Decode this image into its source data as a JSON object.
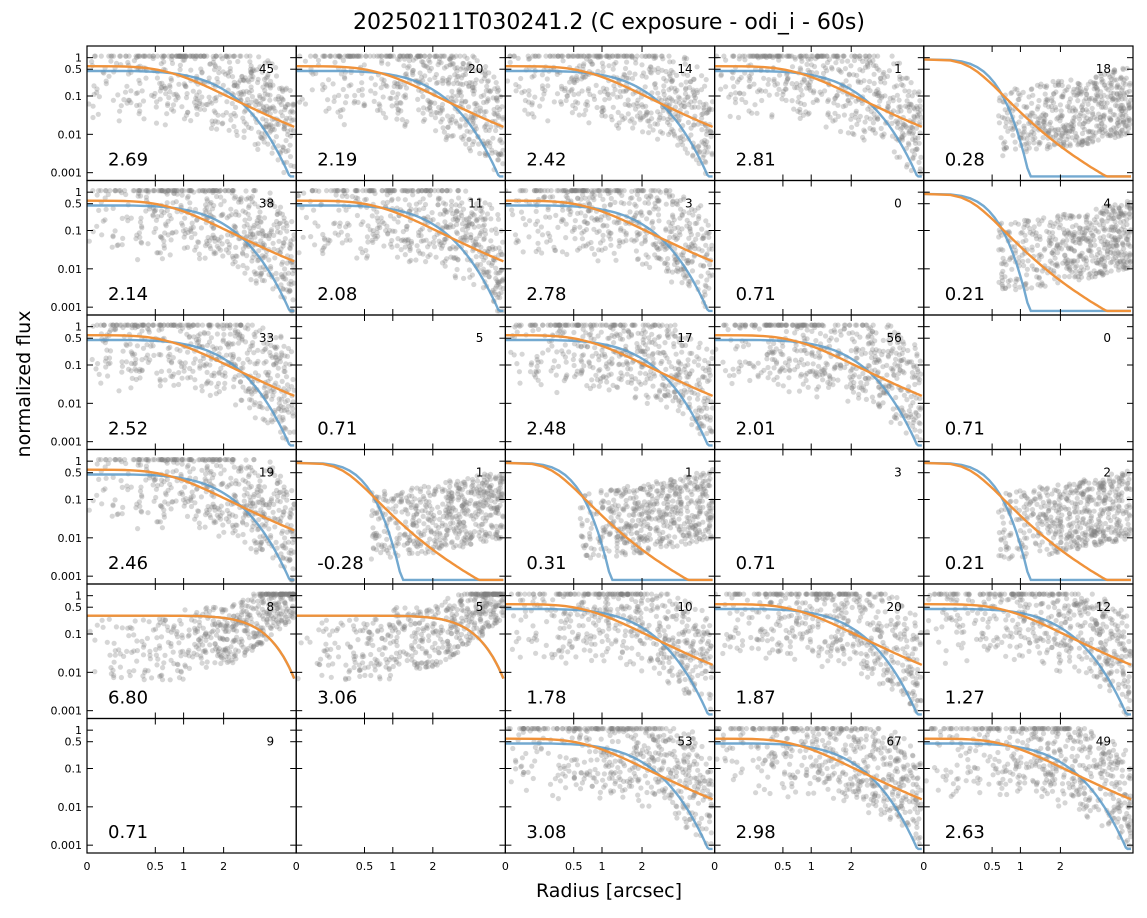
{
  "figure": {
    "title": "20250211T030241.2 (C exposure - odi_i - 60s)",
    "xlabel": "Radius [arcsec]",
    "ylabel": "normalized flux"
  },
  "chart_data": {
    "type": "scatter",
    "layout": "6x5 grid of small multiples",
    "xticks": [
      "0",
      "0.5",
      "1",
      "2"
    ],
    "yticks": [
      "0.001",
      "0.01",
      "0.1",
      "0.5",
      "1"
    ],
    "yscale": "log",
    "colors": {
      "points": "#808080",
      "fit_blue": "#5a9ac8",
      "fit_orange": "#f0923a"
    },
    "panels": [
      {
        "value": "2.69",
        "count": "45"
      },
      {
        "value": "2.19",
        "count": "20"
      },
      {
        "value": "2.42",
        "count": "14"
      },
      {
        "value": "2.81",
        "count": "1"
      },
      {
        "value": "0.28",
        "count": "18"
      },
      {
        "value": "2.14",
        "count": "38"
      },
      {
        "value": "2.08",
        "count": "11"
      },
      {
        "value": "2.78",
        "count": "3"
      },
      {
        "value": "0.71",
        "count": "0"
      },
      {
        "value": "0.21",
        "count": "4"
      },
      {
        "value": "2.52",
        "count": "33"
      },
      {
        "value": "0.71",
        "count": "5"
      },
      {
        "value": "2.48",
        "count": "17"
      },
      {
        "value": "2.01",
        "count": "56"
      },
      {
        "value": "0.71",
        "count": "0"
      },
      {
        "value": "2.46",
        "count": "19"
      },
      {
        "value": "-0.28",
        "count": "1"
      },
      {
        "value": "0.31",
        "count": "1"
      },
      {
        "value": "0.71",
        "count": "3"
      },
      {
        "value": "0.21",
        "count": "2"
      },
      {
        "value": "6.80",
        "count": "8"
      },
      {
        "value": "3.06",
        "count": "5"
      },
      {
        "value": "1.78",
        "count": "10"
      },
      {
        "value": "1.87",
        "count": "20"
      },
      {
        "value": "1.27",
        "count": "12"
      },
      {
        "value": "0.71",
        "count": "9"
      },
      {
        "value": "",
        "count": ""
      },
      {
        "value": "3.08",
        "count": "53"
      },
      {
        "value": "2.98",
        "count": "67"
      },
      {
        "value": "2.63",
        "count": "49"
      }
    ]
  }
}
